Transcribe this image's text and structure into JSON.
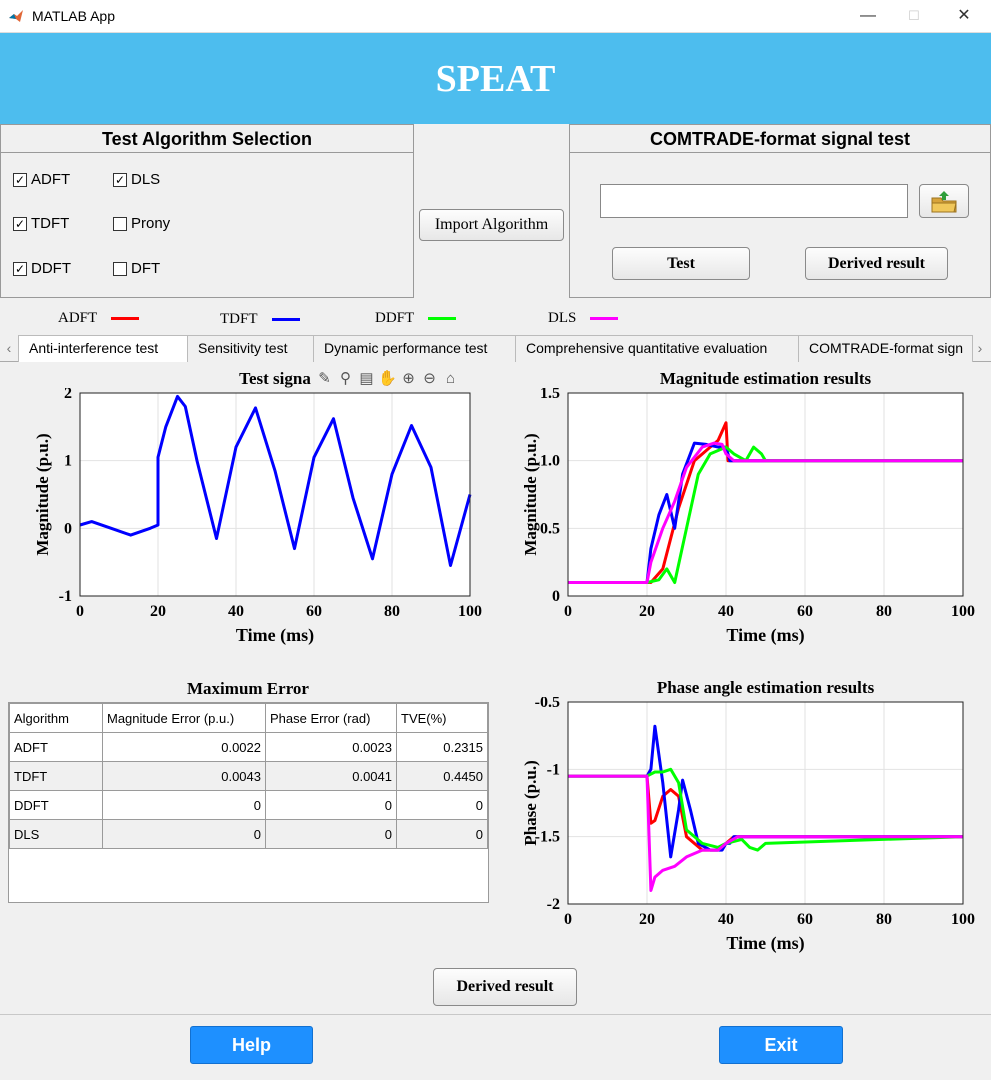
{
  "window": {
    "title": "MATLAB App",
    "minimize": "—",
    "maximize": "☐",
    "close": "✕"
  },
  "app": {
    "name": "SPEAT"
  },
  "algo_panel": {
    "title": "Test Algorithm Selection",
    "checkboxes": [
      {
        "label": "ADFT",
        "checked": true
      },
      {
        "label": "DLS",
        "checked": true
      },
      {
        "label": "TDFT",
        "checked": true
      },
      {
        "label": "Prony",
        "checked": false
      },
      {
        "label": "DDFT",
        "checked": true
      },
      {
        "label": "DFT",
        "checked": false
      }
    ]
  },
  "import_button": "Import Algorithm",
  "comtrade_panel": {
    "title": "COMTRADE-format signal test",
    "path_value": "",
    "test_button": "Test",
    "derived_button": "Derived result"
  },
  "legend": [
    {
      "label": "ADFT",
      "color": "#ff0000"
    },
    {
      "label": "TDFT",
      "color": "#0000ff"
    },
    {
      "label": "DDFT",
      "color": "#00ff00"
    },
    {
      "label": "DLS",
      "color": "#ff00ff"
    }
  ],
  "tabs": [
    {
      "label": "Anti-interference test",
      "active": true
    },
    {
      "label": "Sensitivity test",
      "active": false
    },
    {
      "label": "Dynamic performance test",
      "active": false
    },
    {
      "label": "Comprehensive quantitative evaluation",
      "active": false
    },
    {
      "label": "COMTRADE-format sign",
      "active": false
    }
  ],
  "charts": {
    "signal": {
      "title": "Test signa",
      "xlabel": "Time (ms)",
      "ylabel": "Magnitude (p.u.)",
      "xticks": [
        "0",
        "20",
        "40",
        "60",
        "80",
        "100"
      ],
      "yticks": [
        "-1",
        "0",
        "1",
        "2"
      ]
    },
    "magnitude": {
      "title": "Magnitude estimation results",
      "xlabel": "Time (ms)",
      "ylabel": "Magnitude (p.u.)",
      "xticks": [
        "0",
        "20",
        "40",
        "60",
        "80",
        "100"
      ],
      "yticks": [
        "0",
        "0.5",
        "1.0",
        "1.5"
      ]
    },
    "phase": {
      "title": "Phase angle estimation results",
      "xlabel": "Time (ms)",
      "ylabel": "Phase (p.u.)",
      "xticks": [
        "0",
        "20",
        "40",
        "60",
        "80",
        "100"
      ],
      "yticks": [
        "-2",
        "-1.5",
        "-1",
        "-0.5"
      ]
    }
  },
  "chart_data": [
    {
      "type": "line",
      "title": "Test signa",
      "xlabel": "Time (ms)",
      "ylabel": "Magnitude (p.u.)",
      "xlim": [
        0,
        100
      ],
      "ylim": [
        -1,
        2
      ],
      "grid": true,
      "series": [
        {
          "name": "TDFT",
          "color": "#0000ff",
          "x": [
            0,
            3,
            8,
            13,
            18,
            20,
            20,
            22,
            25,
            27,
            30,
            35,
            40,
            45,
            50,
            55,
            60,
            65,
            70,
            75,
            80,
            85,
            90,
            95,
            100
          ],
          "y": [
            0.05,
            0.1,
            0.0,
            -0.1,
            0.0,
            0.05,
            1.05,
            1.5,
            1.95,
            1.8,
            1.0,
            -0.15,
            1.2,
            1.78,
            0.85,
            -0.3,
            1.05,
            1.62,
            0.45,
            -0.45,
            0.8,
            1.52,
            0.9,
            -0.55,
            0.5
          ]
        }
      ]
    },
    {
      "type": "line",
      "title": "Magnitude estimation results",
      "xlabel": "Time (ms)",
      "ylabel": "Magnitude (p.u.)",
      "xlim": [
        0,
        100
      ],
      "ylim": [
        0,
        1.5
      ],
      "grid": true,
      "series": [
        {
          "name": "ADFT",
          "color": "#ff0000",
          "x": [
            0,
            20,
            21,
            24,
            28,
            32,
            36,
            38,
            40,
            40.5,
            45,
            100
          ],
          "y": [
            0.1,
            0.1,
            0.1,
            0.2,
            0.65,
            1.0,
            1.1,
            1.15,
            1.28,
            1.0,
            1.0,
            1.0
          ]
        },
        {
          "name": "TDFT",
          "color": "#0000ff",
          "x": [
            0,
            20,
            21,
            23,
            25,
            27,
            29,
            32,
            35,
            38,
            40,
            41,
            45,
            100
          ],
          "y": [
            0.1,
            0.1,
            0.35,
            0.6,
            0.75,
            0.5,
            0.9,
            1.13,
            1.12,
            1.1,
            1.1,
            1.0,
            1.0,
            1.0
          ]
        },
        {
          "name": "DDFT",
          "color": "#00ff00",
          "x": [
            0,
            20,
            23,
            25,
            27,
            30,
            33,
            36,
            40,
            42,
            45,
            47,
            49,
            50,
            100
          ],
          "y": [
            0.1,
            0.1,
            0.12,
            0.2,
            0.1,
            0.5,
            0.9,
            1.05,
            1.1,
            1.05,
            1.0,
            1.1,
            1.05,
            1.0,
            1.0
          ]
        },
        {
          "name": "DLS",
          "color": "#ff00ff",
          "x": [
            0,
            20,
            21,
            24,
            27,
            30,
            34,
            37,
            39,
            40,
            42,
            100
          ],
          "y": [
            0.1,
            0.1,
            0.25,
            0.5,
            0.7,
            0.95,
            1.1,
            1.13,
            1.12,
            1.05,
            1.0,
            1.0
          ]
        }
      ]
    },
    {
      "type": "line",
      "title": "Phase angle estimation results",
      "xlabel": "Time (ms)",
      "ylabel": "Phase (p.u.)",
      "xlim": [
        0,
        100
      ],
      "ylim": [
        -2,
        -0.5
      ],
      "grid": true,
      "series": [
        {
          "name": "ADFT",
          "color": "#ff0000",
          "x": [
            0,
            20,
            21,
            22,
            24,
            26,
            28,
            30,
            34,
            38,
            40,
            42,
            100
          ],
          "y": [
            -1.05,
            -1.05,
            -1.4,
            -1.38,
            -1.2,
            -1.15,
            -1.2,
            -1.5,
            -1.6,
            -1.6,
            -1.55,
            -1.5,
            -1.5
          ]
        },
        {
          "name": "TDFT",
          "color": "#0000ff",
          "x": [
            0,
            20,
            21,
            22,
            24,
            26,
            28,
            29,
            31,
            33,
            36,
            39,
            40,
            41,
            42,
            100
          ],
          "y": [
            -1.05,
            -1.05,
            -1.0,
            -0.68,
            -1.1,
            -1.65,
            -1.3,
            -1.08,
            -1.3,
            -1.55,
            -1.6,
            -1.6,
            -1.55,
            -1.55,
            -1.5,
            -1.5
          ]
        },
        {
          "name": "DDFT",
          "color": "#00ff00",
          "x": [
            0,
            20,
            22,
            24,
            26,
            28,
            30,
            34,
            38,
            40,
            44,
            46,
            48,
            50,
            100
          ],
          "y": [
            -1.05,
            -1.05,
            -1.02,
            -1.02,
            -1.0,
            -1.1,
            -1.45,
            -1.55,
            -1.58,
            -1.55,
            -1.52,
            -1.58,
            -1.6,
            -1.55,
            -1.5
          ]
        },
        {
          "name": "DLS",
          "color": "#ff00ff",
          "x": [
            0,
            20,
            21,
            22,
            24,
            27,
            30,
            34,
            38,
            40,
            43,
            100
          ],
          "y": [
            -1.05,
            -1.05,
            -1.9,
            -1.8,
            -1.75,
            -1.72,
            -1.65,
            -1.6,
            -1.6,
            -1.55,
            -1.5,
            -1.5
          ]
        }
      ]
    }
  ],
  "error_table": {
    "title": "Maximum Error",
    "columns": [
      "Algorithm",
      "Magnitude Error (p.u.)",
      "Phase Error (rad)",
      "TVE(%)"
    ],
    "rows": [
      [
        "ADFT",
        "0.0022",
        "0.0023",
        "0.2315"
      ],
      [
        "TDFT",
        "0.0043",
        "0.0041",
        "0.4450"
      ],
      [
        "DDFT",
        "0",
        "0",
        "0"
      ],
      [
        "DLS",
        "0",
        "0",
        "0"
      ]
    ]
  },
  "bottom": {
    "derived_button": "Derived result",
    "help_button": "Help",
    "exit_button": "Exit"
  }
}
